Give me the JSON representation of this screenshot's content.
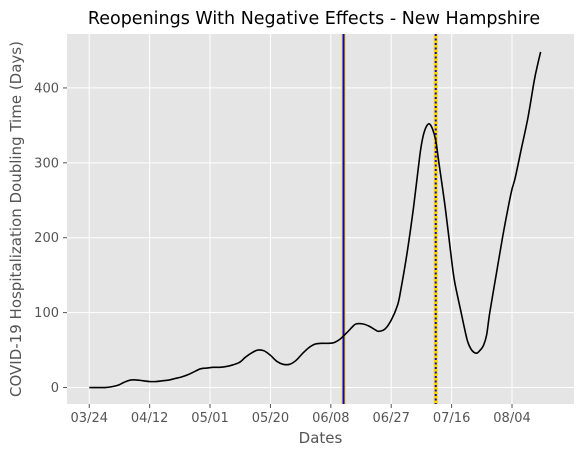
{
  "chart_data": {
    "type": "line",
    "title": "Reopenings With Negative Effects - New Hampshire",
    "xlabel": "Dates",
    "ylabel": "COVID-19 Hospitalization Doubling Time (Days)",
    "x_ticks": [
      {
        "label": "03/24",
        "day": 0
      },
      {
        "label": "04/12",
        "day": 19
      },
      {
        "label": "05/01",
        "day": 38
      },
      {
        "label": "05/20",
        "day": 57
      },
      {
        "label": "06/08",
        "day": 76
      },
      {
        "label": "06/27",
        "day": 95
      },
      {
        "label": "07/16",
        "day": 114
      },
      {
        "label": "08/04",
        "day": 133
      }
    ],
    "y_ticks": [
      0,
      100,
      200,
      300,
      400
    ],
    "xlim_days": [
      -7,
      152.5
    ],
    "ylim": [
      -22,
      472
    ],
    "grid": true,
    "style": "ggplot",
    "background": "#e5e5e5",
    "series": [
      {
        "color": "#000000",
        "points": [
          [
            0,
            0
          ],
          [
            3,
            0
          ],
          [
            5,
            0
          ],
          [
            7,
            1
          ],
          [
            9,
            3
          ],
          [
            11,
            7
          ],
          [
            13,
            10
          ],
          [
            15,
            10
          ],
          [
            17,
            9
          ],
          [
            19,
            8
          ],
          [
            21,
            8
          ],
          [
            23,
            9
          ],
          [
            25,
            10
          ],
          [
            27,
            12
          ],
          [
            29,
            14
          ],
          [
            31,
            17
          ],
          [
            33,
            21
          ],
          [
            35,
            25
          ],
          [
            37,
            26
          ],
          [
            39,
            27
          ],
          [
            41,
            27
          ],
          [
            43,
            28
          ],
          [
            45,
            30
          ],
          [
            47,
            33
          ],
          [
            48,
            36
          ],
          [
            49,
            40
          ],
          [
            51,
            46
          ],
          [
            53,
            50
          ],
          [
            55,
            49
          ],
          [
            57,
            43
          ],
          [
            59,
            35
          ],
          [
            61,
            31
          ],
          [
            63,
            31
          ],
          [
            65,
            36
          ],
          [
            67,
            45
          ],
          [
            69,
            53
          ],
          [
            71,
            58
          ],
          [
            73,
            59
          ],
          [
            75,
            59
          ],
          [
            77,
            60
          ],
          [
            79,
            65
          ],
          [
            81,
            73
          ],
          [
            83,
            82
          ],
          [
            84,
            85
          ],
          [
            86,
            85
          ],
          [
            88,
            82
          ],
          [
            90,
            77
          ],
          [
            91,
            75
          ],
          [
            93,
            78
          ],
          [
            95,
            90
          ],
          [
            97,
            110
          ],
          [
            98,
            130
          ],
          [
            100,
            180
          ],
          [
            102,
            240
          ],
          [
            104,
            310
          ],
          [
            105,
            335
          ],
          [
            106,
            348
          ],
          [
            107,
            352
          ],
          [
            108,
            345
          ],
          [
            109,
            330
          ],
          [
            110,
            300
          ],
          [
            112,
            240
          ],
          [
            114,
            170
          ],
          [
            115,
            140
          ],
          [
            117,
            100
          ],
          [
            118,
            80
          ],
          [
            119,
            62
          ],
          [
            120,
            52
          ],
          [
            121,
            47
          ],
          [
            122,
            46
          ],
          [
            123,
            50
          ],
          [
            124,
            56
          ],
          [
            125,
            70
          ],
          [
            126,
            100
          ],
          [
            128,
            150
          ],
          [
            130,
            200
          ],
          [
            132,
            245
          ],
          [
            133,
            265
          ],
          [
            134,
            280
          ],
          [
            136,
            320
          ],
          [
            138,
            360
          ],
          [
            140,
            410
          ],
          [
            141,
            430
          ],
          [
            142,
            448
          ]
        ]
      }
    ],
    "vlines": [
      {
        "day": 80,
        "color": "#0000ff",
        "edge_color": "#ffd700",
        "style": "solid"
      },
      {
        "day": 109,
        "color": "#0000ff",
        "edge_color": "#ffd700",
        "style": "dotted"
      }
    ]
  }
}
